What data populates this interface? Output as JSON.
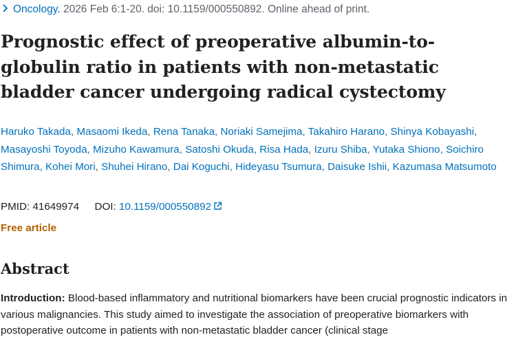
{
  "citation": {
    "journal": "Oncology.",
    "details": " 2026 Feb 6:1-20. doi: 10.1159/000550892. Online ahead of print."
  },
  "article": {
    "title": "Prognostic effect of preoperative albumin-to-globulin ratio in patients with non-metastatic bladder cancer undergoing radical cystectomy"
  },
  "authors": [
    "Haruko Takada",
    "Masaomi Ikeda",
    "Rena Tanaka",
    "Noriaki Samejima",
    "Takahiro Harano",
    "Shinya Kobayashi",
    "Masayoshi Toyoda",
    "Mizuho Kawamura",
    "Satoshi Okuda",
    "Risa Hada",
    "Izuru Shiba",
    "Yutaka Shiono",
    "Soichiro Shimura",
    "Kohei Mori",
    "Shuhei Hirano",
    "Dai Koguchi",
    "Hideyasu Tsumura",
    "Daisuke Ishii",
    "Kazumasa Matsumoto"
  ],
  "identifiers": {
    "pmid_label": "PMID:",
    "pmid": "41649974",
    "doi_label": "DOI:",
    "doi": "10.1159/000550892"
  },
  "free_article": "Free article",
  "abstract": {
    "heading": "Abstract",
    "intro_label": "Introduction:",
    "intro_text": " Blood-based inflammatory and nutritional biomarkers have been crucial prognostic indicators in various malignancies. This study aimed to investigate the association of preoperative biomarkers with postoperative outcome in patients with non-metastatic bladder cancer (clinical stage"
  },
  "colors": {
    "link": "#0071bc",
    "muted": "#5b616b",
    "free": "#b45e00",
    "text": "#212121"
  },
  "icons": {
    "chevron": "chevron-right-icon",
    "external": "external-link-icon"
  }
}
